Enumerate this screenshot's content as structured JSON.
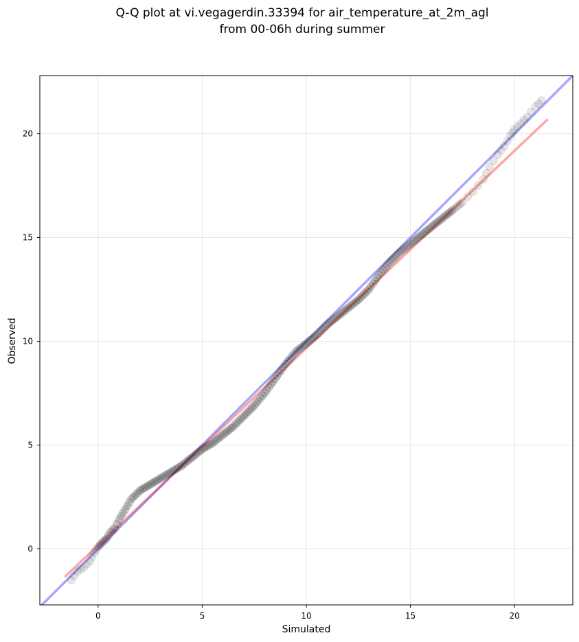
{
  "chart_data": {
    "type": "scatter",
    "title_lines": [
      "Q-Q plot at vi.vegagerdin.33394 for air_temperature_at_2m_agl",
      "from 00-06h during summer"
    ],
    "xlabel": "Simulated",
    "ylabel": "Observed",
    "xlim": [
      -2.8,
      22.8
    ],
    "ylim": [
      -2.7,
      22.8
    ],
    "xticks": [
      0,
      5,
      10,
      15,
      20
    ],
    "yticks": [
      0,
      5,
      10,
      15,
      20
    ],
    "grid": true,
    "colors": {
      "points": "#000000",
      "identity_line": "#0000ff",
      "fit_line": "#ff0000"
    },
    "identity_line": {
      "x": [
        -2.8,
        22.8
      ],
      "y": [
        -2.8,
        22.8
      ]
    },
    "fit_line": {
      "x": [
        -1.6,
        21.6
      ],
      "y": [
        -1.35,
        20.7
      ]
    },
    "quantiles": {
      "x": [
        -1.3,
        -1.0,
        -0.7,
        -0.4,
        -0.2,
        0.0,
        0.2,
        0.4,
        0.6,
        0.8,
        1.0,
        1.3,
        1.6,
        2.0,
        2.5,
        3.0,
        3.5,
        4.0,
        4.5,
        5.0,
        5.5,
        6.0,
        6.5,
        7.0,
        7.5,
        8.0,
        8.5,
        9.0,
        9.5,
        10.0,
        10.5,
        11.0,
        11.5,
        12.0,
        12.5,
        13.0,
        13.5,
        14.0,
        14.5,
        15.0,
        15.5,
        16.0,
        16.5,
        17.0,
        17.5,
        18.0,
        18.5,
        18.8,
        19.2,
        19.5,
        19.8,
        20.0,
        20.3,
        20.6,
        21.0,
        21.3
      ],
      "y": [
        -1.5,
        -1.1,
        -0.9,
        -0.6,
        -0.2,
        0.1,
        0.3,
        0.5,
        0.8,
        1.0,
        1.4,
        1.9,
        2.4,
        2.8,
        3.1,
        3.4,
        3.7,
        4.0,
        4.4,
        4.8,
        5.1,
        5.5,
        5.9,
        6.4,
        6.9,
        7.5,
        8.2,
        8.9,
        9.5,
        9.9,
        10.3,
        10.8,
        11.2,
        11.6,
        12.0,
        12.5,
        13.2,
        13.8,
        14.3,
        14.7,
        15.1,
        15.5,
        15.9,
        16.3,
        16.7,
        17.2,
        17.8,
        18.4,
        19.0,
        19.4,
        19.9,
        20.2,
        20.5,
        20.8,
        21.3,
        21.6
      ]
    }
  }
}
